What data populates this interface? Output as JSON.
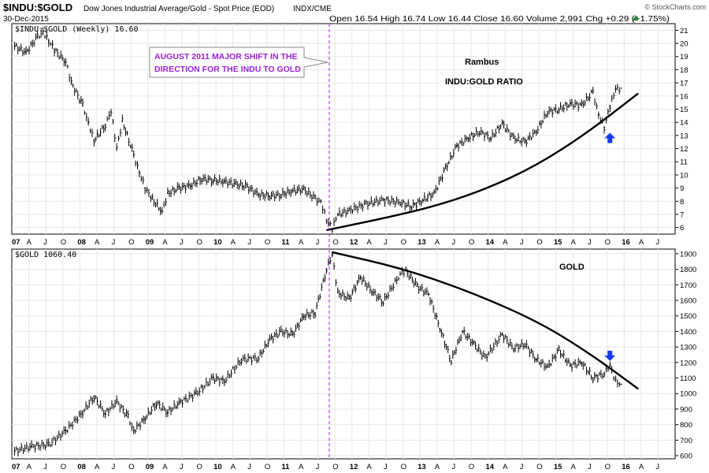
{
  "header": {
    "symbol": "$INDU:$GOLD",
    "description": "Dow Jones Industrial Average/Gold - Spot Price (EOD)",
    "exchange": "INDX/CME",
    "date": "30-Dec-2015",
    "quote": "Open 16.54  High 16.74  Low 16.44  Close 16.60  Volume 2,991  Chg +0.29 (+1.75%)",
    "quote_arrow_icon": "up-triangle-icon",
    "credit": "© StockCharts.com"
  },
  "callout": {
    "line1": "AUGUST 2011 MAJOR SHIFT IN THE",
    "line2": "DIRECTION FOR THE INDU TO GOLD",
    "color": "#9b20d9"
  },
  "colors": {
    "price": "#000000",
    "trendline": "#000000",
    "vertical_marker": "#9b20d9",
    "arrow": "#1a3cf0",
    "grid": "#e6e6e6"
  },
  "chart_data": [
    {
      "type": "bar",
      "legend": "$INDU:$GOLD (Weekly) 16.60",
      "annotations": [
        "Rambus",
        "INDU:GOLD RATIO"
      ],
      "x_tick_labels": [
        "07",
        "A",
        "J",
        "O",
        "08",
        "A",
        "J",
        "O",
        "09",
        "A",
        "J",
        "O",
        "10",
        "A",
        "J",
        "O",
        "11",
        "A",
        "J",
        "O",
        "12",
        "A",
        "J",
        "O",
        "13",
        "A",
        "J",
        "O",
        "14",
        "A",
        "J",
        "O",
        "15",
        "A",
        "J",
        "O",
        "16",
        "A",
        "J"
      ],
      "y_ticks": [
        6,
        7,
        8,
        9,
        10,
        11,
        12,
        13,
        14,
        15,
        16,
        17,
        18,
        19,
        20,
        21
      ],
      "ylim": [
        5.5,
        21.5
      ],
      "series": [
        {
          "x": [
            "2007-01",
            "2007-03",
            "2007-05",
            "2007-06",
            "2007-07",
            "2007-08",
            "2007-10",
            "2007-11",
            "2008-01",
            "2008-02",
            "2008-03",
            "2008-05",
            "2008-06",
            "2008-07",
            "2008-08",
            "2008-10",
            "2008-11",
            "2008-12",
            "2009-01",
            "2009-03",
            "2009-04",
            "2009-06",
            "2009-08",
            "2009-10",
            "2009-12",
            "2010-02",
            "2010-04",
            "2010-06",
            "2010-08",
            "2010-10",
            "2010-12",
            "2011-02",
            "2011-04",
            "2011-06",
            "2011-07",
            "2011-08",
            "2011-09",
            "2011-10",
            "2011-12",
            "2012-03",
            "2012-06",
            "2012-09",
            "2012-11",
            "2013-01",
            "2013-03",
            "2013-05",
            "2013-07",
            "2013-09",
            "2013-11",
            "2014-01",
            "2014-03",
            "2014-05",
            "2014-07",
            "2014-09",
            "2014-11",
            "2015-01",
            "2015-03",
            "2015-05",
            "2015-07",
            "2015-08",
            "2015-09",
            "2015-10",
            "2015-11",
            "2015-12"
          ],
          "y": [
            19.8,
            19.3,
            20.5,
            20.9,
            20.2,
            19.5,
            18.6,
            17.0,
            15.3,
            14.0,
            12.6,
            13.8,
            14.8,
            12.0,
            14.1,
            11.5,
            10.2,
            9.0,
            8.3,
            7.2,
            8.6,
            9.0,
            9.2,
            9.7,
            9.6,
            9.5,
            9.3,
            9.1,
            8.5,
            8.4,
            8.5,
            8.8,
            8.9,
            8.2,
            8.0,
            6.6,
            5.9,
            7.0,
            7.3,
            7.8,
            8.1,
            7.9,
            7.6,
            8.1,
            8.6,
            10.5,
            12.2,
            12.8,
            13.3,
            12.8,
            13.9,
            12.8,
            12.5,
            13.3,
            14.8,
            15.0,
            15.4,
            15.3,
            16.3,
            14.6,
            13.6,
            15.2,
            16.5,
            16.6
          ]
        }
      ],
      "trendline": {
        "x": [
          "2011-08",
          "2012-06",
          "2013-03",
          "2013-12",
          "2014-09",
          "2015-06",
          "2016-03"
        ],
        "y": [
          5.8,
          6.7,
          7.6,
          8.9,
          10.7,
          13.2,
          16.2
        ]
      },
      "marker_arrow": {
        "x": "2015-10",
        "y": 13.2,
        "direction": "up"
      }
    },
    {
      "type": "bar",
      "legend": "$GOLD 1060.40",
      "annotations": [
        "GOLD"
      ],
      "x_tick_labels": [
        "07",
        "A",
        "J",
        "O",
        "08",
        "A",
        "J",
        "O",
        "09",
        "A",
        "J",
        "O",
        "10",
        "A",
        "J",
        "O",
        "11",
        "A",
        "J",
        "O",
        "12",
        "A",
        "J",
        "O",
        "13",
        "A",
        "J",
        "O",
        "14",
        "A",
        "J",
        "O",
        "15",
        "A",
        "J",
        "O",
        "16",
        "A",
        "J"
      ],
      "y_ticks": [
        600,
        700,
        800,
        900,
        1000,
        1100,
        1200,
        1300,
        1400,
        1500,
        1600,
        1700,
        1800,
        1900
      ],
      "ylim": [
        580,
        1930
      ],
      "series": [
        {
          "x": [
            "2007-01",
            "2007-04",
            "2007-07",
            "2007-10",
            "2008-01",
            "2008-03",
            "2008-05",
            "2008-07",
            "2008-09",
            "2008-10",
            "2008-12",
            "2009-02",
            "2009-04",
            "2009-06",
            "2009-09",
            "2009-12",
            "2010-02",
            "2010-05",
            "2010-08",
            "2010-10",
            "2010-12",
            "2011-02",
            "2011-04",
            "2011-06",
            "2011-08",
            "2011-09",
            "2011-10",
            "2011-12",
            "2012-02",
            "2012-04",
            "2012-06",
            "2012-09",
            "2012-10",
            "2012-12",
            "2013-02",
            "2013-04",
            "2013-06",
            "2013-08",
            "2013-10",
            "2013-12",
            "2014-03",
            "2014-05",
            "2014-07",
            "2014-09",
            "2014-11",
            "2015-01",
            "2015-03",
            "2015-05",
            "2015-07",
            "2015-09",
            "2015-10",
            "2015-11",
            "2015-12"
          ],
          "y": [
            630,
            660,
            670,
            760,
            880,
            980,
            870,
            950,
            850,
            760,
            840,
            940,
            880,
            940,
            1000,
            1100,
            1080,
            1220,
            1230,
            1350,
            1400,
            1380,
            1500,
            1520,
            1800,
            1890,
            1650,
            1610,
            1750,
            1660,
            1590,
            1770,
            1790,
            1690,
            1640,
            1420,
            1210,
            1400,
            1320,
            1230,
            1380,
            1290,
            1320,
            1220,
            1170,
            1280,
            1180,
            1200,
            1100,
            1130,
            1180,
            1080,
            1060
          ]
        }
      ],
      "trendline": {
        "x": [
          "2011-09",
          "2012-09",
          "2013-09",
          "2014-09",
          "2015-06",
          "2016-03"
        ],
        "y": [
          1910,
          1810,
          1660,
          1470,
          1270,
          1030
        ]
      },
      "marker_arrow": {
        "x": "2015-10",
        "y": 1210,
        "direction": "down"
      }
    }
  ]
}
